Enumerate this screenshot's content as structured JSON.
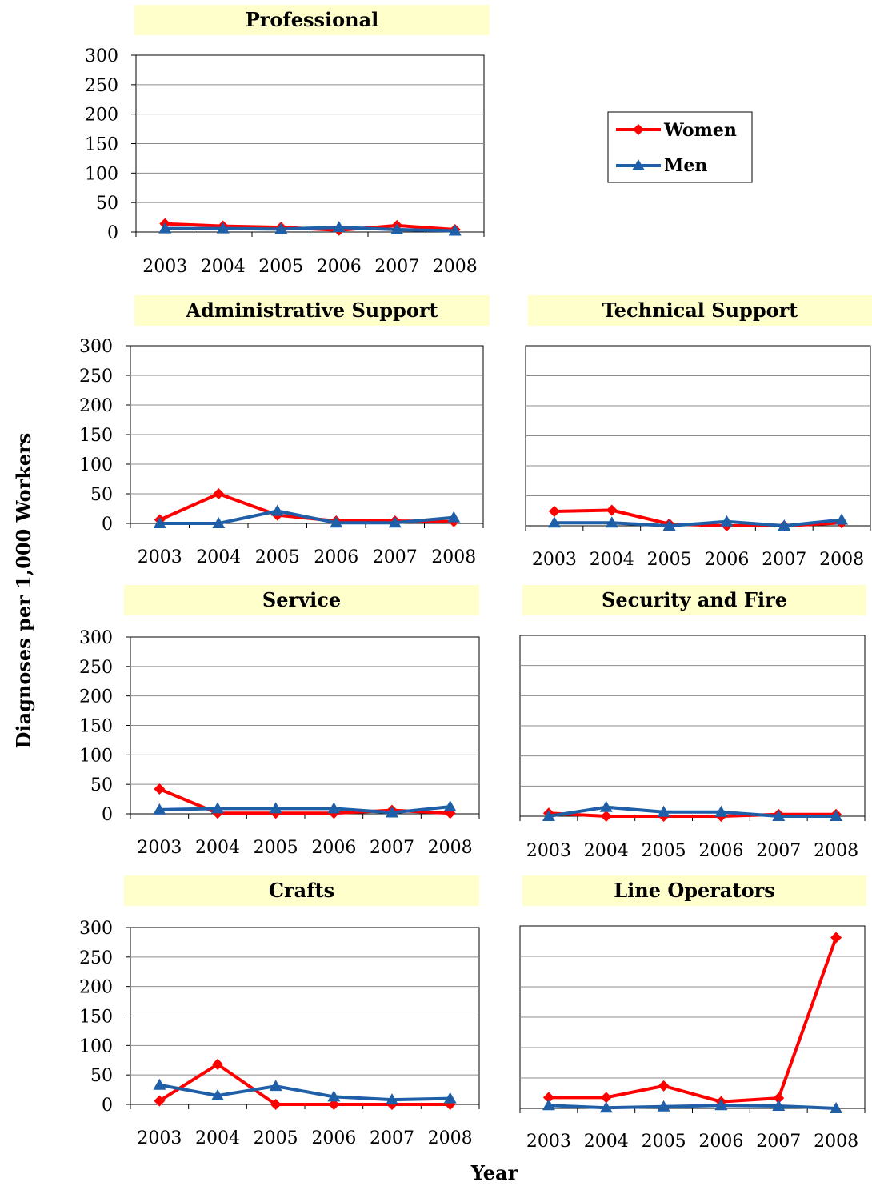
{
  "figure": {
    "ylabel": "Diagnoses per 1,000 Workers",
    "xlabel": "Year"
  },
  "legend": {
    "items": [
      {
        "label": "Women",
        "color": "#ff0000",
        "marker": "diamond"
      },
      {
        "label": "Men",
        "color": "#1f5fa8",
        "marker": "triangle"
      }
    ]
  },
  "chart_data": [
    {
      "type": "line",
      "title": "Professional",
      "x": [
        "2003",
        "2004",
        "2005",
        "2006",
        "2007",
        "2008"
      ],
      "ylim": [
        0,
        300
      ],
      "yticks": [
        "300",
        "250",
        "200",
        "150",
        "100",
        "50",
        "0"
      ],
      "series": [
        {
          "name": "Women",
          "values": [
            14,
            10,
            8,
            3,
            11,
            4
          ]
        },
        {
          "name": "Men",
          "values": [
            6,
            6,
            5,
            8,
            4,
            2
          ]
        }
      ]
    },
    {
      "type": "line",
      "title": "Administrative Support",
      "x": [
        "2003",
        "2004",
        "2005",
        "2006",
        "2007",
        "2008"
      ],
      "ylim": [
        0,
        300
      ],
      "yticks": [
        "300",
        "250",
        "200",
        "150",
        "100",
        "50",
        "0"
      ],
      "series": [
        {
          "name": "Women",
          "values": [
            6,
            50,
            14,
            4,
            4,
            3
          ]
        },
        {
          "name": "Men",
          "values": [
            0,
            0,
            21,
            1,
            1,
            10
          ]
        }
      ]
    },
    {
      "type": "line",
      "title": "Technical Support",
      "x": [
        "2003",
        "2004",
        "2005",
        "2006",
        "2007",
        "2008"
      ],
      "ylim": [
        0,
        300
      ],
      "yticks": [],
      "series": [
        {
          "name": "Women",
          "values": [
            24,
            26,
            3,
            0,
            0,
            5
          ]
        },
        {
          "name": "Men",
          "values": [
            5,
            5,
            0,
            7,
            0,
            10
          ]
        }
      ]
    },
    {
      "type": "line",
      "title": "Service",
      "x": [
        "2003",
        "2004",
        "2005",
        "2006",
        "2007",
        "2008"
      ],
      "ylim": [
        0,
        300
      ],
      "yticks": [
        "300",
        "250",
        "200",
        "150",
        "100",
        "50",
        "0"
      ],
      "series": [
        {
          "name": "Women",
          "values": [
            42,
            1,
            1,
            1,
            6,
            1
          ]
        },
        {
          "name": "Men",
          "values": [
            7,
            9,
            9,
            9,
            2,
            12
          ]
        }
      ]
    },
    {
      "type": "line",
      "title": "Security and Fire",
      "x": [
        "2003",
        "2004",
        "2005",
        "2006",
        "2007",
        "2008"
      ],
      "ylim": [
        0,
        300
      ],
      "yticks": [],
      "series": [
        {
          "name": "Women",
          "values": [
            5,
            0,
            0,
            0,
            3,
            3
          ]
        },
        {
          "name": "Men",
          "values": [
            0,
            15,
            7,
            7,
            0,
            0
          ]
        }
      ]
    },
    {
      "type": "line",
      "title": "Crafts",
      "x": [
        "2003",
        "2004",
        "2005",
        "2006",
        "2007",
        "2008"
      ],
      "ylim": [
        0,
        300
      ],
      "yticks": [
        "300",
        "250",
        "200",
        "150",
        "100",
        "50",
        "0"
      ],
      "series": [
        {
          "name": "Women",
          "values": [
            6,
            68,
            0,
            0,
            0,
            0
          ]
        },
        {
          "name": "Men",
          "values": [
            33,
            15,
            31,
            13,
            8,
            10
          ]
        }
      ]
    },
    {
      "type": "line",
      "title": "Line Operators",
      "x": [
        "2003",
        "2004",
        "2005",
        "2006",
        "2007",
        "2008"
      ],
      "ylim": [
        0,
        300
      ],
      "yticks": [],
      "series": [
        {
          "name": "Women",
          "values": [
            18,
            18,
            37,
            11,
            17,
            281
          ]
        },
        {
          "name": "Men",
          "values": [
            5,
            1,
            3,
            5,
            4,
            0
          ]
        }
      ]
    }
  ]
}
